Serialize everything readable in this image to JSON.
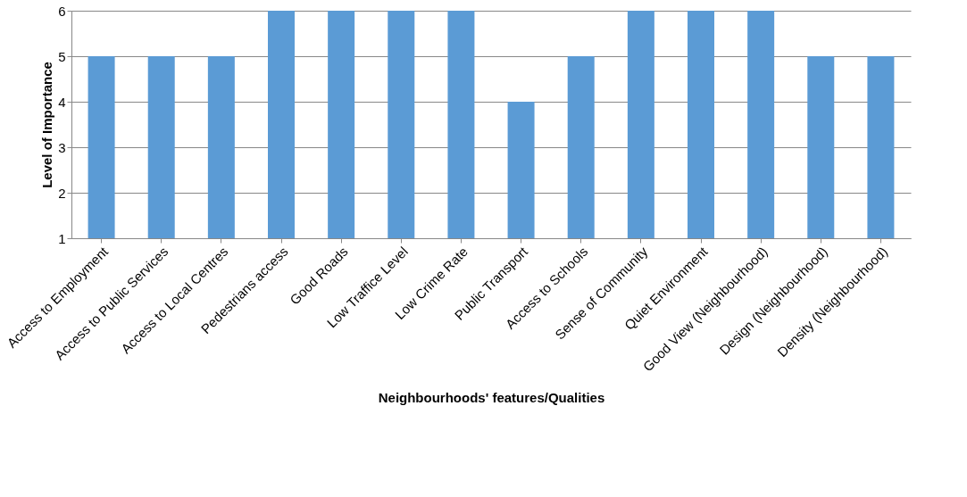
{
  "chart_data": {
    "type": "bar",
    "xlabel": "Neighbourhoods'  features/Qualities",
    "ylabel": "Level of Importance",
    "categories": [
      "Access to Employment",
      "Access to Public Services",
      "Access to Local Centres",
      "Pedestrians  access",
      "Good Roads",
      "Low Traffice Level",
      "Low Crime Rate",
      "Public Transport",
      "Access to Schools",
      "Sense of Community",
      "Quiet Environment",
      "Good View (Neighbourhood)",
      "Design (Neighbourhood)",
      "Density (Neighbourhood)"
    ],
    "values": [
      5,
      5,
      5,
      6,
      6,
      6,
      6,
      4,
      5,
      6,
      6,
      6,
      5,
      5
    ],
    "color": "#5b9bd5",
    "ylim": [
      1,
      6
    ],
    "yticks": [
      1,
      2,
      3,
      4,
      5,
      6
    ],
    "grid": "y"
  }
}
